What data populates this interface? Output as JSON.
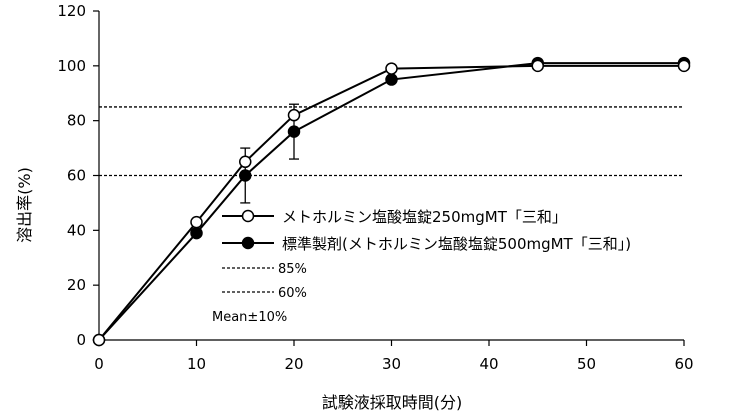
{
  "chart_data": {
    "type": "line",
    "title": "",
    "xlabel": "試験液採取時間(分)",
    "ylabel": "溶出率(%)",
    "xlim": [
      0,
      60
    ],
    "ylim": [
      0,
      120
    ],
    "x_ticks": [
      0,
      10,
      20,
      30,
      40,
      50,
      60
    ],
    "y_ticks": [
      0,
      20,
      40,
      60,
      80,
      100,
      120
    ],
    "reference_lines": [
      {
        "label": "85%",
        "y": 85,
        "style": "dashed"
      },
      {
        "label": "60%",
        "y": 60,
        "style": "dashed"
      }
    ],
    "series": [
      {
        "name": "メトホルミン塩酸塩錠250mgMT「三和」",
        "marker": "open-circle",
        "x": [
          0,
          10,
          15,
          20,
          30,
          45,
          60
        ],
        "y": [
          0,
          43,
          65,
          82,
          99,
          100,
          100
        ]
      },
      {
        "name": "標準製剤(メトホルミン塩酸塩錠500mgMT「三和」)",
        "marker": "filled-circle",
        "x": [
          0,
          10,
          15,
          20,
          30,
          45,
          60
        ],
        "y": [
          0,
          39,
          60,
          76,
          95,
          101,
          101
        ],
        "error_bars": [
          0,
          0,
          10,
          10,
          0,
          0,
          0
        ]
      }
    ],
    "note": "Mean±10%",
    "legend_position": "center-right"
  }
}
